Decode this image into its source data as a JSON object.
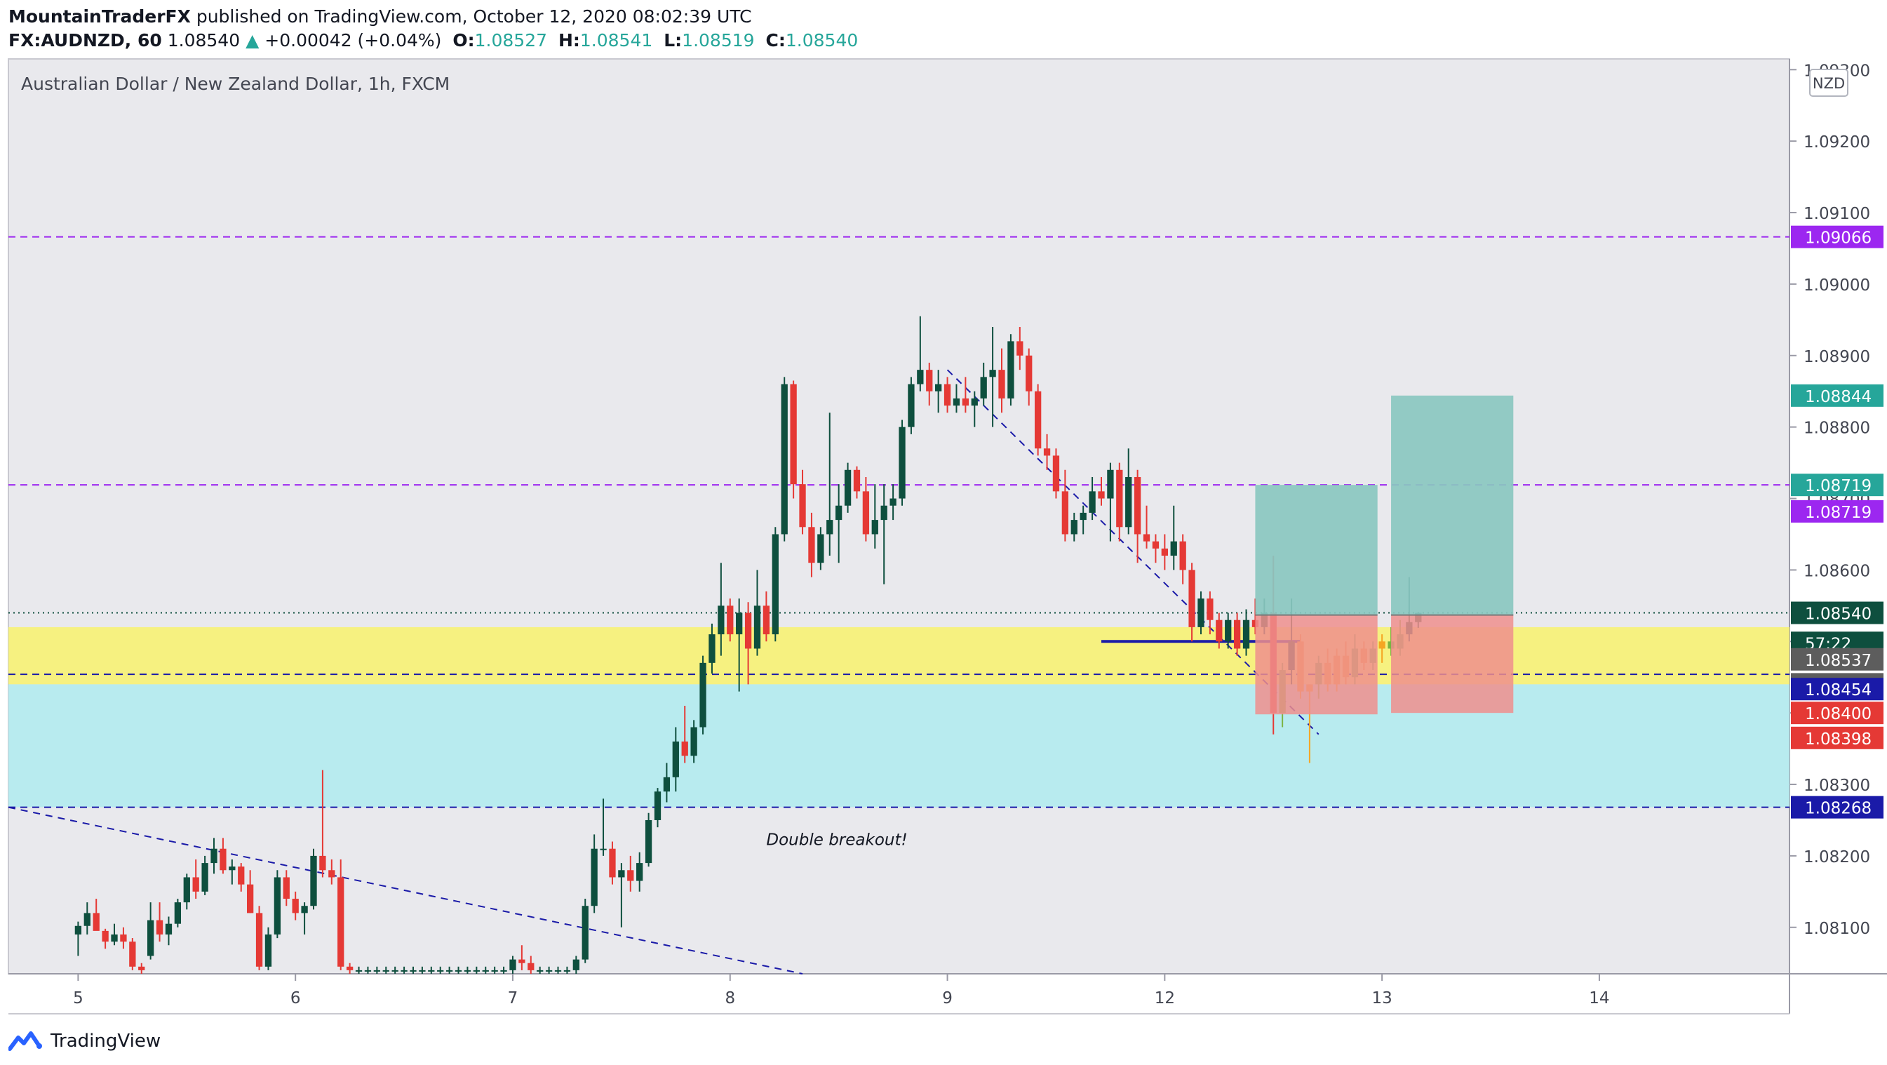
{
  "header": {
    "author": "MountainTraderFX",
    "published": "published on TradingView.com, October 12, 2020 08:02:39 UTC",
    "symbol": "FX:AUDNZD, 60",
    "last": "1.08540",
    "change_arrow": "▲",
    "change": "+0.00042 (+0.04%)",
    "open_label": "O:",
    "open": "1.08527",
    "high_label": "H:",
    "high": "1.08541",
    "low_label": "L:",
    "low": "1.08519",
    "close_label": "C:",
    "close": "1.08540"
  },
  "footer": {
    "brand": "TradingView",
    "logo_icon": "tradingview-logo-icon"
  },
  "colors": {
    "bull": "#0e4f3e",
    "bear": "#e53935",
    "yellow_candle": "#f5a623",
    "green_candle": "#7cb342",
    "yellow_zone": "#f7f17a",
    "cyan_zone": "#b5ebef",
    "target_zone": "#8ac7c0",
    "stop_zone": "#ee8f8d",
    "purple": "#9c27f0",
    "navy": "#1a1aa8",
    "bg": "#e9e9ed"
  },
  "chart_data": {
    "type": "candlestick",
    "title": "Australian Dollar / New Zealand Dollar, 1h, FXCM",
    "currency": "NZD",
    "ylim": [
      1.08035,
      1.09315
    ],
    "price_ticks": [
      "1.08100",
      "1.08200",
      "1.08300",
      "1.08400",
      "1.08500",
      "1.08600",
      "1.08700",
      "1.08800",
      "1.08900",
      "1.09000",
      "1.09100",
      "1.09200",
      "1.09300"
    ],
    "date_ticks": [
      {
        "label": "5",
        "t": 0
      },
      {
        "label": "6",
        "t": 24
      },
      {
        "label": "7",
        "t": 48
      },
      {
        "label": "8",
        "t": 72
      },
      {
        "label": "9",
        "t": 96
      },
      {
        "label": "12",
        "t": 120
      },
      {
        "label": "13",
        "t": 144
      },
      {
        "label": "14",
        "t": 168
      }
    ],
    "x_range": [
      -7.7,
      189
    ],
    "grid": false,
    "candles": [
      [
        1.0809,
        1.08108,
        1.0806,
        1.08102,
        "n"
      ],
      [
        1.08102,
        1.08135,
        1.0809,
        1.0812,
        "n"
      ],
      [
        1.0812,
        1.0814,
        1.08105,
        1.08095,
        "n"
      ],
      [
        1.08095,
        1.08098,
        1.0807,
        1.0808,
        "n"
      ],
      [
        1.0808,
        1.08105,
        1.08075,
        1.0809,
        "n"
      ],
      [
        1.0809,
        1.081,
        1.0807,
        1.0808,
        "n"
      ],
      [
        1.0808,
        1.08085,
        1.0804,
        1.08045,
        "n"
      ],
      [
        1.08045,
        1.0805,
        1.08035,
        1.0804,
        "n"
      ],
      [
        1.0806,
        1.08135,
        1.08055,
        1.0811,
        "n"
      ],
      [
        1.0811,
        1.08135,
        1.0808,
        1.0809,
        "n"
      ],
      [
        1.0809,
        1.08115,
        1.08075,
        1.08105,
        "n"
      ],
      [
        1.08105,
        1.0814,
        1.081,
        1.08135,
        "n"
      ],
      [
        1.08135,
        1.08175,
        1.08125,
        1.0817,
        "n"
      ],
      [
        1.0817,
        1.08195,
        1.0814,
        1.0815,
        "n"
      ],
      [
        1.0815,
        1.082,
        1.08145,
        1.0819,
        "n"
      ],
      [
        1.0819,
        1.08225,
        1.08175,
        1.0821,
        "n"
      ],
      [
        1.0821,
        1.08225,
        1.08175,
        1.0818,
        "n"
      ],
      [
        1.0818,
        1.08195,
        1.0816,
        1.08185,
        "n"
      ],
      [
        1.08185,
        1.0819,
        1.0815,
        1.0816,
        "n"
      ],
      [
        1.0816,
        1.0818,
        1.0812,
        1.0812,
        "n"
      ],
      [
        1.0812,
        1.0813,
        1.0804,
        1.08045,
        "n"
      ],
      [
        1.08045,
        1.081,
        1.0804,
        1.0809,
        "n"
      ],
      [
        1.0809,
        1.0818,
        1.08085,
        1.0817,
        "n"
      ],
      [
        1.0817,
        1.0818,
        1.0813,
        1.0814,
        "n"
      ],
      [
        1.0814,
        1.0815,
        1.0811,
        1.0812,
        "n"
      ],
      [
        1.0812,
        1.08135,
        1.0809,
        1.0813,
        "n"
      ],
      [
        1.0813,
        1.0821,
        1.08125,
        1.082,
        "n"
      ],
      [
        1.082,
        1.0832,
        1.0817,
        1.0818,
        "n"
      ],
      [
        1.0818,
        1.08195,
        1.0816,
        1.0817,
        "n"
      ],
      [
        1.0817,
        1.08195,
        1.0804,
        1.08045,
        "n"
      ],
      [
        1.08045,
        1.0805,
        1.08035,
        1.0804,
        "n"
      ],
      [
        1.0804,
        1.08045,
        1.08035,
        1.0804,
        "n"
      ],
      [
        1.0804,
        1.08045,
        1.08035,
        1.0804,
        "n"
      ],
      [
        1.0804,
        1.08045,
        1.08035,
        1.0804,
        "n"
      ],
      [
        1.0804,
        1.08045,
        1.08035,
        1.0804,
        "n"
      ],
      [
        1.0804,
        1.08045,
        1.08035,
        1.0804,
        "n"
      ],
      [
        1.0804,
        1.08045,
        1.08035,
        1.0804,
        "n"
      ],
      [
        1.0804,
        1.08045,
        1.08035,
        1.0804,
        "n"
      ],
      [
        1.0804,
        1.08045,
        1.08035,
        1.0804,
        "n"
      ],
      [
        1.0804,
        1.08045,
        1.08035,
        1.0804,
        "n"
      ],
      [
        1.0804,
        1.08045,
        1.08035,
        1.0804,
        "n"
      ],
      [
        1.0804,
        1.08045,
        1.08035,
        1.0804,
        "n"
      ],
      [
        1.0804,
        1.08045,
        1.08035,
        1.0804,
        "n"
      ],
      [
        1.0804,
        1.08045,
        1.08035,
        1.0804,
        "n"
      ],
      [
        1.0804,
        1.08045,
        1.08035,
        1.0804,
        "n"
      ],
      [
        1.0804,
        1.08045,
        1.08035,
        1.0804,
        "n"
      ],
      [
        1.0804,
        1.08045,
        1.08035,
        1.0804,
        "n"
      ],
      [
        1.0804,
        1.08045,
        1.08035,
        1.0804,
        "n"
      ],
      [
        1.0804,
        1.0806,
        1.08035,
        1.08055,
        "n"
      ],
      [
        1.08055,
        1.08075,
        1.0804,
        1.0805,
        "n"
      ],
      [
        1.0805,
        1.0806,
        1.08035,
        1.0804,
        "n"
      ],
      [
        1.0804,
        1.08045,
        1.08035,
        1.0804,
        "n"
      ],
      [
        1.0804,
        1.08045,
        1.08035,
        1.0804,
        "n"
      ],
      [
        1.0804,
        1.08045,
        1.08035,
        1.0804,
        "n"
      ],
      [
        1.0804,
        1.08045,
        1.08035,
        1.0804,
        "n"
      ],
      [
        1.0804,
        1.0806,
        1.08035,
        1.08055,
        "n"
      ],
      [
        1.08055,
        1.0814,
        1.0805,
        1.0813,
        "n"
      ],
      [
        1.0813,
        1.0823,
        1.0812,
        1.0821,
        "n"
      ],
      [
        1.0821,
        1.0828,
        1.082,
        1.0821,
        "n"
      ],
      [
        1.0821,
        1.0822,
        1.0816,
        1.0817,
        "n"
      ],
      [
        1.0817,
        1.0819,
        1.081,
        1.0818,
        "n"
      ],
      [
        1.0818,
        1.082,
        1.0815,
        1.08165,
        "n"
      ],
      [
        1.08165,
        1.08205,
        1.0815,
        1.0819,
        "n"
      ],
      [
        1.0819,
        1.0826,
        1.08185,
        1.0825,
        "n"
      ],
      [
        1.0825,
        1.08295,
        1.0824,
        1.0829,
        "n"
      ],
      [
        1.0829,
        1.0833,
        1.08275,
        1.0831,
        "n"
      ],
      [
        1.0831,
        1.0838,
        1.0829,
        1.0836,
        "n"
      ],
      [
        1.0836,
        1.0841,
        1.0833,
        1.0834,
        "n"
      ],
      [
        1.0834,
        1.0839,
        1.0833,
        1.0838,
        "n"
      ],
      [
        1.0838,
        1.0848,
        1.0837,
        1.0847,
        "n"
      ],
      [
        1.0847,
        1.08525,
        1.08455,
        1.0851,
        "n"
      ],
      [
        1.0851,
        1.0861,
        1.0848,
        1.0855,
        "n"
      ],
      [
        1.0855,
        1.0856,
        1.085,
        1.0851,
        "n"
      ],
      [
        1.0851,
        1.0856,
        1.0843,
        1.0854,
        "n"
      ],
      [
        1.0854,
        1.08555,
        1.0844,
        1.0849,
        "n"
      ],
      [
        1.0849,
        1.086,
        1.0848,
        1.0855,
        "n"
      ],
      [
        1.0855,
        1.0857,
        1.085,
        1.0851,
        "n"
      ],
      [
        1.0851,
        1.0866,
        1.085,
        1.0865,
        "n"
      ],
      [
        1.0865,
        1.0887,
        1.0864,
        1.0886,
        "n"
      ],
      [
        1.0886,
        1.08865,
        1.087,
        1.0872,
        "n"
      ],
      [
        1.0872,
        1.0874,
        1.0865,
        1.0866,
        "n"
      ],
      [
        1.0866,
        1.0868,
        1.0859,
        1.0861,
        "n"
      ],
      [
        1.0861,
        1.0866,
        1.086,
        1.0865,
        "n"
      ],
      [
        1.0865,
        1.0882,
        1.0862,
        1.0867,
        "n"
      ],
      [
        1.0867,
        1.0872,
        1.0861,
        1.0869,
        "n"
      ],
      [
        1.0869,
        1.0875,
        1.0868,
        1.0874,
        "n"
      ],
      [
        1.0874,
        1.08745,
        1.087,
        1.0871,
        "n"
      ],
      [
        1.0871,
        1.0873,
        1.0864,
        1.0865,
        "n"
      ],
      [
        1.0865,
        1.0872,
        1.0863,
        1.0867,
        "n"
      ],
      [
        1.0867,
        1.0872,
        1.0858,
        1.0869,
        "n"
      ],
      [
        1.0869,
        1.0872,
        1.0867,
        1.087,
        "n"
      ],
      [
        1.087,
        1.0881,
        1.0869,
        1.088,
        "n"
      ],
      [
        1.088,
        1.0887,
        1.0879,
        1.0886,
        "n"
      ],
      [
        1.0886,
        1.08955,
        1.0885,
        1.0888,
        "n"
      ],
      [
        1.0888,
        1.0889,
        1.0883,
        1.0885,
        "n"
      ],
      [
        1.0885,
        1.0888,
        1.0882,
        1.0886,
        "n"
      ],
      [
        1.0886,
        1.0887,
        1.0882,
        1.0883,
        "n"
      ],
      [
        1.0883,
        1.0886,
        1.0882,
        1.0884,
        "n"
      ],
      [
        1.0884,
        1.0887,
        1.0882,
        1.0883,
        "n"
      ],
      [
        1.0883,
        1.0885,
        1.088,
        1.0884,
        "n"
      ],
      [
        1.0884,
        1.0889,
        1.0883,
        1.0887,
        "n"
      ],
      [
        1.0887,
        1.0894,
        1.088,
        1.0888,
        "n"
      ],
      [
        1.0888,
        1.0891,
        1.0882,
        1.0884,
        "n"
      ],
      [
        1.0884,
        1.0893,
        1.0883,
        1.0892,
        "n"
      ],
      [
        1.0892,
        1.0894,
        1.0888,
        1.089,
        "n"
      ],
      [
        1.089,
        1.0891,
        1.0883,
        1.0885,
        "n"
      ],
      [
        1.0885,
        1.0886,
        1.0876,
        1.0877,
        "n"
      ],
      [
        1.0877,
        1.0879,
        1.0874,
        1.0876,
        "n"
      ],
      [
        1.0876,
        1.0877,
        1.087,
        1.0871,
        "n"
      ],
      [
        1.0871,
        1.0874,
        1.0864,
        1.0865,
        "n"
      ],
      [
        1.0865,
        1.0868,
        1.0864,
        1.0867,
        "n"
      ],
      [
        1.0867,
        1.0869,
        1.0865,
        1.0868,
        "n"
      ],
      [
        1.0868,
        1.0873,
        1.0867,
        1.0871,
        "n"
      ],
      [
        1.0871,
        1.0873,
        1.0869,
        1.087,
        "n"
      ],
      [
        1.087,
        1.0875,
        1.0864,
        1.0874,
        "n"
      ],
      [
        1.0874,
        1.0875,
        1.0864,
        1.0866,
        "n"
      ],
      [
        1.0866,
        1.0877,
        1.0865,
        1.0873,
        "n"
      ],
      [
        1.0873,
        1.0874,
        1.0861,
        1.0865,
        "n"
      ],
      [
        1.0865,
        1.0869,
        1.0863,
        1.0864,
        "n"
      ],
      [
        1.0864,
        1.0865,
        1.0861,
        1.0863,
        "n"
      ],
      [
        1.0863,
        1.0865,
        1.086,
        1.0862,
        "n"
      ],
      [
        1.0862,
        1.0869,
        1.086,
        1.0864,
        "n"
      ],
      [
        1.0864,
        1.0865,
        1.0858,
        1.086,
        "n"
      ],
      [
        1.086,
        1.0861,
        1.085,
        1.0852,
        "n"
      ],
      [
        1.0852,
        1.0857,
        1.0851,
        1.0856,
        "n"
      ],
      [
        1.0856,
        1.0857,
        1.0851,
        1.0853,
        "n"
      ],
      [
        1.0853,
        1.0854,
        1.0849,
        1.085,
        "n"
      ],
      [
        1.085,
        1.0854,
        1.0849,
        1.0853,
        "n"
      ],
      [
        1.0853,
        1.0854,
        1.0848,
        1.0849,
        "n"
      ],
      [
        1.0849,
        1.08545,
        1.0848,
        1.0853,
        "n"
      ],
      [
        1.0853,
        1.0856,
        1.0851,
        1.0852,
        "n"
      ],
      [
        1.0852,
        1.0856,
        1.0851,
        1.0854,
        "n"
      ],
      [
        1.0854,
        1.0862,
        1.0837,
        1.084,
        "n"
      ],
      [
        1.084,
        1.0847,
        1.0838,
        1.0846,
        "g"
      ],
      [
        1.0846,
        1.0856,
        1.0844,
        1.085,
        "n"
      ],
      [
        1.085,
        1.0851,
        1.0842,
        1.0843,
        "y"
      ],
      [
        1.0843,
        1.0844,
        1.0833,
        1.0844,
        "y"
      ],
      [
        1.0844,
        1.0848,
        1.0842,
        1.0847,
        "g"
      ],
      [
        1.0847,
        1.0849,
        1.0843,
        1.0844,
        "y"
      ],
      [
        1.0844,
        1.0849,
        1.0843,
        1.0848,
        "y"
      ],
      [
        1.0848,
        1.085,
        1.0844,
        1.0845,
        "y"
      ],
      [
        1.0845,
        1.0851,
        1.0844,
        1.0849,
        "g"
      ],
      [
        1.0849,
        1.085,
        1.0846,
        1.0847,
        "y"
      ],
      [
        1.0847,
        1.085,
        1.0846,
        1.0849,
        "g"
      ],
      [
        1.0849,
        1.0851,
        1.0847,
        1.085,
        "y"
      ],
      [
        1.085,
        1.0852,
        1.0848,
        1.0849,
        "g"
      ],
      [
        1.0849,
        1.0853,
        1.0848,
        1.0851,
        "g"
      ],
      [
        1.0851,
        1.0859,
        1.085,
        1.08527,
        "n"
      ],
      [
        1.08527,
        1.08541,
        1.08519,
        1.0854,
        "n"
      ]
    ],
    "horizontal_lines": [
      {
        "price": 1.09066,
        "style": "dashed",
        "color": "#9c27f0",
        "label": "1.09066"
      },
      {
        "price": 1.08719,
        "style": "dashed",
        "color": "#9c27f0",
        "label": "1.08719"
      },
      {
        "price": 1.08454,
        "style": "dashed",
        "color": "#1a1aa8",
        "label": "1.08454"
      },
      {
        "price": 1.08268,
        "style": "dashed",
        "color": "#1a1aa8",
        "label": "1.08268"
      },
      {
        "price": 1.0854,
        "style": "dotted",
        "color": "#0e4f3e",
        "label": "1.08540"
      }
    ],
    "zones": [
      {
        "name": "yellow",
        "from": 1.0844,
        "to": 1.0852
      },
      {
        "name": "cyan",
        "from": 1.08268,
        "to": 1.0844
      }
    ],
    "positions": [
      {
        "t0": 130,
        "t1": 143.5,
        "entry": 1.08537,
        "target": 1.08719,
        "stop": 1.08398
      },
      {
        "t0": 145,
        "t1": 158.5,
        "entry": 1.08537,
        "target": 1.08844,
        "stop": 1.084
      }
    ],
    "trendlines": [
      {
        "t0": -7.7,
        "p0": 1.08268,
        "t1": 80,
        "p1": 1.08035
      },
      {
        "t0": 96,
        "p0": 1.0888,
        "t1": 137,
        "p1": 1.0837
      }
    ],
    "breakout_line": {
      "t0": 113,
      "t1": 135,
      "price": 1.085
    },
    "annotation": {
      "text": "Double breakout!",
      "t": 76,
      "price": 1.08215
    },
    "price_labels": [
      {
        "price": 1.09066,
        "text": "1.09066",
        "bg": "#9c27f0"
      },
      {
        "price": 1.08844,
        "text": "1.08844",
        "bg": "#26a69a"
      },
      {
        "price": 1.08719,
        "text": "1.08719",
        "bg": "#26a69a"
      },
      {
        "price": 1.08682,
        "text": "1.08719",
        "bg": "#9c27f0"
      },
      {
        "price": 1.0854,
        "text": "1.08540",
        "bg": "#0e4f3e"
      },
      {
        "price": 1.08498,
        "text": "57:22",
        "bg": "#0e4f3e"
      },
      {
        "price": 1.08475,
        "text": "1.08537",
        "bg": "#5d5d5d"
      },
      {
        "price": 1.0844,
        "text": "1.08533",
        "bg": "#5d5d5d"
      },
      {
        "price": 1.08454,
        "text": "1.08454",
        "bg": "#1a1aa8",
        "offset": 1
      },
      {
        "price": 1.084,
        "text": "1.08400",
        "bg": "#e53935"
      },
      {
        "price": 1.08365,
        "text": "1.08398",
        "bg": "#e53935"
      },
      {
        "price": 1.08268,
        "text": "1.08268",
        "bg": "#1a1aa8"
      }
    ]
  }
}
